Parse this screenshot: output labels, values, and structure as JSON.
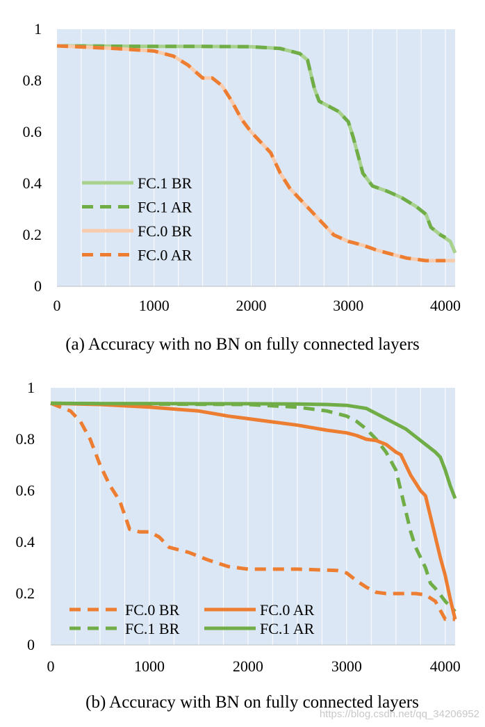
{
  "watermark": "https://blog.csdn.net/qq_34206952",
  "chart_data": [
    {
      "type": "line",
      "caption": "(a)  Accuracy with no BN on fully connected layers",
      "xlabel": "",
      "ylabel": "",
      "xlim": [
        0,
        4100
      ],
      "ylim": [
        0,
        1
      ],
      "x_ticks": [
        0,
        1000,
        2000,
        3000,
        4000
      ],
      "y_ticks": [
        0,
        0.2,
        0.4,
        0.6,
        0.8,
        1
      ],
      "x_tick_labels": [
        "0",
        "1000",
        "2000",
        "3000",
        "4000"
      ],
      "y_tick_labels": [
        "0",
        "0.2",
        "0.4",
        "0.6",
        "0.8",
        "1"
      ],
      "grid": "vertical",
      "legend_position": "lower-left",
      "series": [
        {
          "name": "FC.1 BR",
          "color": "#a9d18e",
          "style": "solid",
          "x": [
            0,
            500,
            1000,
            1500,
            2000,
            2300,
            2500,
            2580,
            2650,
            2700,
            2800,
            2900,
            3000,
            3050,
            3150,
            3250,
            3400,
            3550,
            3700,
            3800,
            3850,
            3950,
            4050,
            4100
          ],
          "y": [
            0.935,
            0.934,
            0.933,
            0.933,
            0.932,
            0.925,
            0.905,
            0.88,
            0.77,
            0.72,
            0.7,
            0.68,
            0.64,
            0.58,
            0.44,
            0.39,
            0.37,
            0.345,
            0.31,
            0.28,
            0.23,
            0.2,
            0.175,
            0.13
          ]
        },
        {
          "name": "FC.1 AR",
          "color": "#70ad47",
          "style": "dashed",
          "x": [
            0,
            500,
            1000,
            1500,
            2000,
            2300,
            2500,
            2580,
            2650,
            2700,
            2800,
            2900,
            3000,
            3050,
            3150,
            3250,
            3400,
            3550,
            3700,
            3800,
            3850,
            3950,
            4000
          ],
          "y": [
            0.935,
            0.934,
            0.933,
            0.933,
            0.932,
            0.925,
            0.905,
            0.88,
            0.77,
            0.72,
            0.7,
            0.68,
            0.64,
            0.58,
            0.44,
            0.39,
            0.37,
            0.345,
            0.31,
            0.28,
            0.23,
            0.2,
            0.19
          ]
        },
        {
          "name": "FC.0 BR",
          "color": "#f8cbad",
          "style": "solid",
          "x": [
            0,
            300,
            600,
            800,
            1000,
            1200,
            1350,
            1500,
            1600,
            1700,
            1800,
            1900,
            2000,
            2100,
            2200,
            2300,
            2400,
            2550,
            2700,
            2850,
            3000,
            3150,
            3300,
            3450,
            3600,
            3800,
            4000,
            4100
          ],
          "y": [
            0.935,
            0.93,
            0.925,
            0.92,
            0.915,
            0.895,
            0.86,
            0.81,
            0.81,
            0.78,
            0.72,
            0.65,
            0.6,
            0.56,
            0.52,
            0.44,
            0.38,
            0.32,
            0.26,
            0.2,
            0.175,
            0.16,
            0.14,
            0.125,
            0.11,
            0.1,
            0.1,
            0.1
          ]
        },
        {
          "name": "FC.0 AR",
          "color": "#ed7d31",
          "style": "dashed",
          "x": [
            0,
            300,
            600,
            800,
            1000,
            1200,
            1350,
            1500,
            1600,
            1700,
            1800,
            1900,
            2000,
            2100,
            2200,
            2300,
            2400,
            2550,
            2700,
            2850,
            3000,
            3150,
            3300,
            3450,
            3600,
            3800,
            4000
          ],
          "y": [
            0.935,
            0.93,
            0.925,
            0.92,
            0.915,
            0.895,
            0.86,
            0.81,
            0.81,
            0.78,
            0.72,
            0.65,
            0.6,
            0.56,
            0.52,
            0.44,
            0.38,
            0.32,
            0.26,
            0.2,
            0.175,
            0.16,
            0.14,
            0.125,
            0.11,
            0.1,
            0.1
          ]
        }
      ]
    },
    {
      "type": "line",
      "caption": "(b)  Accuracy with BN on fully connected layers",
      "xlabel": "",
      "ylabel": "",
      "xlim": [
        0,
        4100
      ],
      "ylim": [
        0,
        1
      ],
      "x_ticks": [
        0,
        1000,
        2000,
        3000,
        4000
      ],
      "y_ticks": [
        0,
        0.2,
        0.4,
        0.6,
        0.8,
        1
      ],
      "x_tick_labels": [
        "0",
        "1000",
        "2000",
        "3000",
        "4000"
      ],
      "y_tick_labels": [
        "0",
        "0.2",
        "0.4",
        "0.6",
        "0.8",
        "1"
      ],
      "grid": "vertical",
      "legend_position": "bottom",
      "series": [
        {
          "name": "FC.0 BR",
          "color": "#ed7d31",
          "style": "dashed",
          "x": [
            0,
            200,
            300,
            400,
            500,
            600,
            700,
            800,
            900,
            1000,
            1100,
            1200,
            1400,
            1600,
            1800,
            2000,
            2500,
            2900,
            3000,
            3100,
            3200,
            3300,
            3400,
            3500,
            3600,
            3700,
            3800,
            3900,
            4000,
            4100
          ],
          "y": [
            0.94,
            0.91,
            0.87,
            0.8,
            0.7,
            0.62,
            0.56,
            0.45,
            0.44,
            0.44,
            0.42,
            0.38,
            0.36,
            0.33,
            0.305,
            0.295,
            0.295,
            0.29,
            0.28,
            0.25,
            0.225,
            0.205,
            0.2,
            0.2,
            0.2,
            0.2,
            0.195,
            0.17,
            0.1,
            0.1
          ]
        },
        {
          "name": "FC.1 BR",
          "color": "#70ad47",
          "style": "dashed",
          "x": [
            0,
            500,
            1000,
            1500,
            2000,
            2500,
            2800,
            3000,
            3100,
            3200,
            3300,
            3400,
            3500,
            3550,
            3600,
            3650,
            3700,
            3750,
            3800,
            3850,
            3900,
            4000,
            4100
          ],
          "y": [
            0.94,
            0.938,
            0.937,
            0.936,
            0.935,
            0.925,
            0.91,
            0.89,
            0.87,
            0.84,
            0.8,
            0.75,
            0.68,
            0.6,
            0.52,
            0.44,
            0.38,
            0.34,
            0.3,
            0.24,
            0.22,
            0.17,
            0.13
          ]
        },
        {
          "name": "FC.0 AR",
          "color": "#ed7d31",
          "style": "solid",
          "x": [
            0,
            500,
            1000,
            1500,
            1800,
            2000,
            2200,
            2500,
            2800,
            3000,
            3100,
            3200,
            3300,
            3400,
            3500,
            3550,
            3600,
            3650,
            3700,
            3750,
            3800,
            3850,
            3900,
            3950,
            4000,
            4050,
            4100
          ],
          "y": [
            0.94,
            0.935,
            0.925,
            0.91,
            0.89,
            0.88,
            0.87,
            0.855,
            0.835,
            0.825,
            0.815,
            0.8,
            0.795,
            0.78,
            0.75,
            0.74,
            0.7,
            0.66,
            0.63,
            0.6,
            0.58,
            0.5,
            0.42,
            0.34,
            0.27,
            0.18,
            0.1
          ]
        },
        {
          "name": "FC.1 AR",
          "color": "#70ad47",
          "style": "solid",
          "x": [
            0,
            500,
            1000,
            1500,
            2000,
            2500,
            2800,
            3000,
            3200,
            3300,
            3400,
            3500,
            3600,
            3700,
            3800,
            3900,
            3950,
            4000,
            4050,
            4100
          ],
          "y": [
            0.94,
            0.939,
            0.939,
            0.938,
            0.938,
            0.937,
            0.935,
            0.932,
            0.92,
            0.9,
            0.88,
            0.86,
            0.84,
            0.81,
            0.78,
            0.75,
            0.73,
            0.68,
            0.62,
            0.57
          ]
        }
      ]
    }
  ]
}
